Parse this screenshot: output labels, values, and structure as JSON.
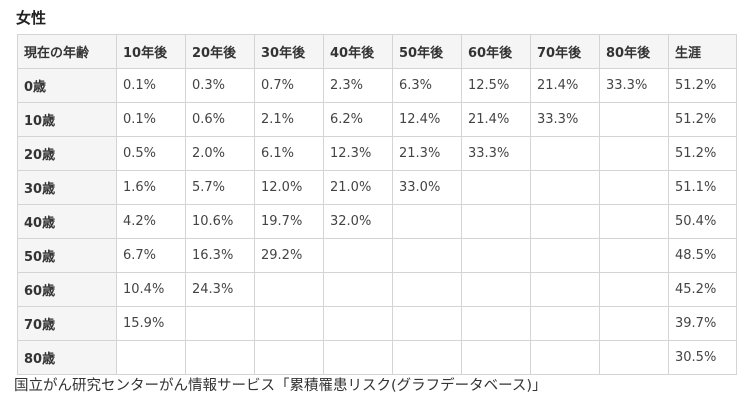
{
  "heading": "女性",
  "table": {
    "corner_header": "現在の年齢",
    "column_headers": [
      "10年後",
      "20年後",
      "30年後",
      "40年後",
      "50年後",
      "60年後",
      "70年後",
      "80年後",
      "生涯"
    ],
    "rows": [
      {
        "age": "0歳",
        "cells": [
          "0.1%",
          "0.3%",
          "0.7%",
          "2.3%",
          "6.3%",
          "12.5%",
          "21.4%",
          "33.3%",
          "51.2%"
        ]
      },
      {
        "age": "10歳",
        "cells": [
          "0.1%",
          "0.6%",
          "2.1%",
          "6.2%",
          "12.4%",
          "21.4%",
          "33.3%",
          "",
          "51.2%"
        ]
      },
      {
        "age": "20歳",
        "cells": [
          "0.5%",
          "2.0%",
          "6.1%",
          "12.3%",
          "21.3%",
          "33.3%",
          "",
          "",
          "51.2%"
        ]
      },
      {
        "age": "30歳",
        "cells": [
          "1.6%",
          "5.7%",
          "12.0%",
          "21.0%",
          "33.0%",
          "",
          "",
          "",
          "51.1%"
        ]
      },
      {
        "age": "40歳",
        "cells": [
          "4.2%",
          "10.6%",
          "19.7%",
          "32.0%",
          "",
          "",
          "",
          "",
          "50.4%"
        ]
      },
      {
        "age": "50歳",
        "cells": [
          "6.7%",
          "16.3%",
          "29.2%",
          "",
          "",
          "",
          "",
          "",
          "48.5%"
        ]
      },
      {
        "age": "60歳",
        "cells": [
          "10.4%",
          "24.3%",
          "",
          "",
          "",
          "",
          "",
          "",
          "45.2%"
        ]
      },
      {
        "age": "70歳",
        "cells": [
          "15.9%",
          "",
          "",
          "",
          "",
          "",
          "",
          "",
          "39.7%"
        ]
      },
      {
        "age": "80歳",
        "cells": [
          "",
          "",
          "",
          "",
          "",
          "",
          "",
          "",
          "30.5%"
        ]
      }
    ]
  },
  "source": "国立がん研究センターがん情報サービス「累積罹患リスク(グラフデータベース)」"
}
